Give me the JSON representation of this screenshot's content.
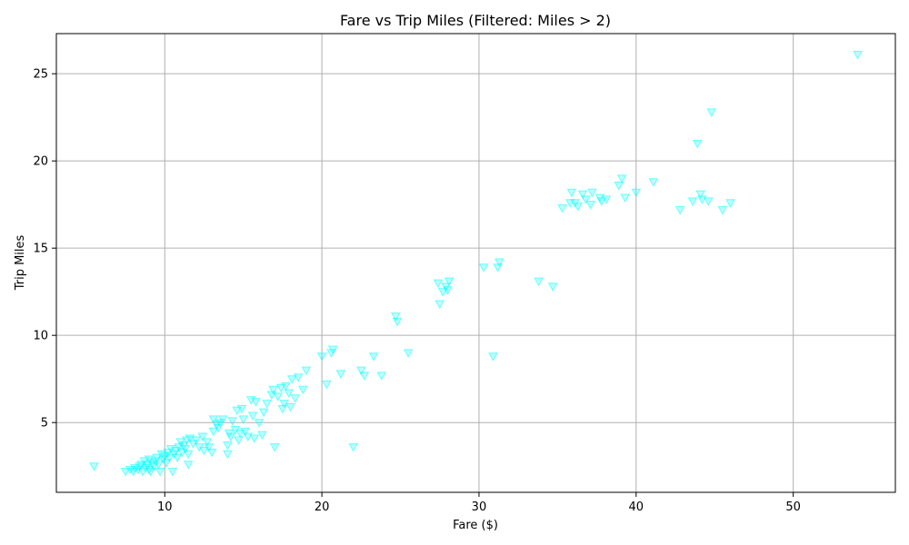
{
  "chart_data": {
    "type": "scatter",
    "title": "Fare vs Trip Miles (Filtered: Miles > 2)",
    "xlabel": "Fare ($)",
    "ylabel": "Trip Miles",
    "xlim": [
      3.1,
      56.5
    ],
    "ylim": [
      1.0,
      27.3
    ],
    "xticks": [
      10,
      20,
      30,
      40,
      50
    ],
    "yticks": [
      5,
      10,
      15,
      20,
      25
    ],
    "grid": true,
    "marker": "triangle-down",
    "marker_color": "#00ffff",
    "marker_alpha": 0.25,
    "points": [
      [
        5.5,
        2.5
      ],
      [
        7.5,
        2.2
      ],
      [
        7.8,
        2.3
      ],
      [
        8.0,
        2.2
      ],
      [
        8.1,
        2.4
      ],
      [
        8.3,
        2.3
      ],
      [
        8.4,
        2.5
      ],
      [
        8.5,
        2.6
      ],
      [
        8.6,
        2.2
      ],
      [
        8.7,
        2.8
      ],
      [
        8.8,
        2.4
      ],
      [
        8.9,
        2.6
      ],
      [
        9.0,
        2.3
      ],
      [
        9.0,
        2.9
      ],
      [
        9.1,
        2.2
      ],
      [
        9.2,
        2.7
      ],
      [
        9.3,
        2.5
      ],
      [
        9.4,
        2.8
      ],
      [
        9.5,
        3.0
      ],
      [
        9.6,
        2.6
      ],
      [
        9.7,
        2.2
      ],
      [
        9.8,
        3.2
      ],
      [
        9.9,
        2.9
      ],
      [
        10.0,
        3.1
      ],
      [
        10.1,
        2.7
      ],
      [
        10.2,
        3.3
      ],
      [
        10.3,
        3.0
      ],
      [
        10.4,
        3.5
      ],
      [
        10.5,
        2.2
      ],
      [
        10.6,
        3.2
      ],
      [
        10.7,
        3.4
      ],
      [
        10.8,
        3.0
      ],
      [
        10.9,
        3.6
      ],
      [
        11.0,
        3.9
      ],
      [
        11.1,
        3.3
      ],
      [
        11.2,
        3.7
      ],
      [
        11.3,
        3.5
      ],
      [
        11.4,
        4.0
      ],
      [
        11.5,
        2.6
      ],
      [
        11.5,
        3.2
      ],
      [
        11.6,
        4.1
      ],
      [
        11.8,
        3.8
      ],
      [
        12.0,
        4.0
      ],
      [
        12.2,
        3.6
      ],
      [
        12.4,
        4.2
      ],
      [
        12.5,
        3.4
      ],
      [
        12.7,
        3.9
      ],
      [
        12.8,
        3.6
      ],
      [
        13.0,
        3.3
      ],
      [
        13.1,
        4.5
      ],
      [
        13.1,
        5.2
      ],
      [
        13.3,
        4.9
      ],
      [
        13.4,
        4.7
      ],
      [
        13.5,
        5.0
      ],
      [
        13.7,
        5.2
      ],
      [
        14.0,
        3.2
      ],
      [
        14.0,
        3.7
      ],
      [
        14.1,
        4.4
      ],
      [
        14.2,
        4.2
      ],
      [
        14.3,
        5.1
      ],
      [
        14.5,
        4.6
      ],
      [
        14.6,
        5.7
      ],
      [
        14.7,
        4.0
      ],
      [
        14.8,
        4.4
      ],
      [
        14.9,
        5.8
      ],
      [
        15.0,
        5.2
      ],
      [
        15.1,
        4.5
      ],
      [
        15.3,
        4.2
      ],
      [
        15.5,
        6.3
      ],
      [
        15.6,
        5.4
      ],
      [
        15.7,
        4.1
      ],
      [
        15.8,
        6.2
      ],
      [
        16.0,
        5.0
      ],
      [
        16.2,
        4.3
      ],
      [
        16.3,
        5.6
      ],
      [
        16.5,
        6.1
      ],
      [
        16.8,
        6.6
      ],
      [
        16.9,
        6.9
      ],
      [
        17.0,
        3.6
      ],
      [
        17.2,
        6.5
      ],
      [
        17.4,
        7.0
      ],
      [
        17.5,
        5.8
      ],
      [
        17.6,
        6.1
      ],
      [
        17.7,
        7.1
      ],
      [
        17.9,
        6.7
      ],
      [
        18.0,
        5.9
      ],
      [
        18.1,
        7.5
      ],
      [
        18.3,
        6.4
      ],
      [
        18.5,
        7.6
      ],
      [
        18.8,
        6.9
      ],
      [
        19.0,
        8.0
      ],
      [
        20.0,
        8.8
      ],
      [
        20.3,
        7.2
      ],
      [
        20.6,
        9.0
      ],
      [
        20.7,
        9.2
      ],
      [
        21.2,
        7.8
      ],
      [
        22.0,
        3.6
      ],
      [
        22.5,
        8.0
      ],
      [
        22.7,
        7.7
      ],
      [
        23.3,
        8.8
      ],
      [
        23.8,
        7.7
      ],
      [
        24.7,
        11.1
      ],
      [
        24.8,
        10.8
      ],
      [
        25.5,
        9.0
      ],
      [
        27.4,
        13.0
      ],
      [
        27.5,
        11.8
      ],
      [
        27.7,
        12.5
      ],
      [
        27.9,
        12.8
      ],
      [
        28.0,
        12.6
      ],
      [
        28.1,
        13.1
      ],
      [
        30.3,
        13.9
      ],
      [
        30.9,
        8.8
      ],
      [
        31.2,
        13.9
      ],
      [
        31.3,
        14.2
      ],
      [
        33.8,
        13.1
      ],
      [
        34.7,
        12.8
      ],
      [
        35.3,
        17.3
      ],
      [
        35.8,
        17.6
      ],
      [
        35.9,
        18.2
      ],
      [
        36.1,
        17.6
      ],
      [
        36.3,
        17.4
      ],
      [
        36.6,
        18.1
      ],
      [
        36.8,
        17.8
      ],
      [
        37.1,
        17.5
      ],
      [
        37.2,
        18.2
      ],
      [
        37.7,
        17.9
      ],
      [
        37.8,
        17.7
      ],
      [
        38.1,
        17.8
      ],
      [
        38.9,
        18.6
      ],
      [
        39.1,
        19.0
      ],
      [
        39.3,
        17.9
      ],
      [
        40.0,
        18.2
      ],
      [
        41.1,
        18.8
      ],
      [
        42.8,
        17.2
      ],
      [
        43.6,
        17.7
      ],
      [
        43.9,
        21.0
      ],
      [
        44.1,
        18.1
      ],
      [
        44.2,
        17.8
      ],
      [
        44.6,
        17.7
      ],
      [
        44.8,
        22.8
      ],
      [
        45.5,
        17.2
      ],
      [
        46.0,
        17.6
      ],
      [
        54.1,
        26.1
      ]
    ]
  }
}
